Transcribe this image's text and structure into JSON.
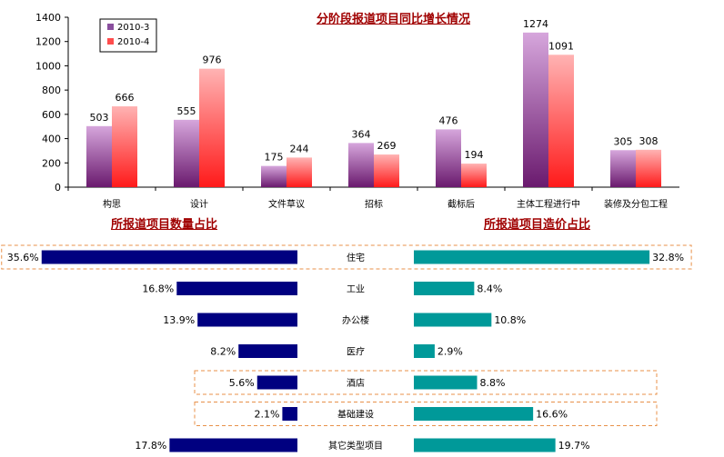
{
  "chart_data": [
    {
      "type": "bar",
      "title": "分阶段报道项目同比增长情况",
      "xlabel": "",
      "ylabel": "",
      "ylim": [
        0,
        1400
      ],
      "yticks": [
        0,
        200,
        400,
        600,
        800,
        1000,
        1200,
        1400
      ],
      "legend_position": "top-left",
      "categories": [
        "构思",
        "设计",
        "文件草议",
        "招标",
        "截标后",
        "主体工程进行中",
        "装修及分包工程"
      ],
      "series": [
        {
          "name": "2010-3",
          "values": [
            503,
            555,
            175,
            364,
            476,
            1274,
            305
          ],
          "color": "#8a4f9e"
        },
        {
          "name": "2010-4",
          "values": [
            666,
            976,
            244,
            269,
            194,
            1091,
            308
          ],
          "color": "#ff4d4d"
        }
      ]
    },
    {
      "type": "bar",
      "orientation": "horizontal",
      "title": "所报道项目数量占比",
      "unit": "%",
      "categories": [
        "住宅",
        "工业",
        "办公楼",
        "医疗",
        "酒店",
        "基础建设",
        "其它类型项目"
      ],
      "values": [
        35.6,
        16.8,
        13.9,
        8.2,
        5.6,
        2.1,
        17.8
      ],
      "color": "#000080"
    },
    {
      "type": "bar",
      "orientation": "horizontal",
      "title": "所报道项目造价占比",
      "unit": "%",
      "categories": [
        "住宅",
        "工业",
        "办公楼",
        "医疗",
        "酒店",
        "基础建设",
        "其它类型项目"
      ],
      "values": [
        32.8,
        8.4,
        10.8,
        2.9,
        8.8,
        16.6,
        19.7
      ],
      "color": "#009999"
    }
  ],
  "highlighted_categories": [
    "住宅",
    "酒店",
    "基础建设"
  ]
}
